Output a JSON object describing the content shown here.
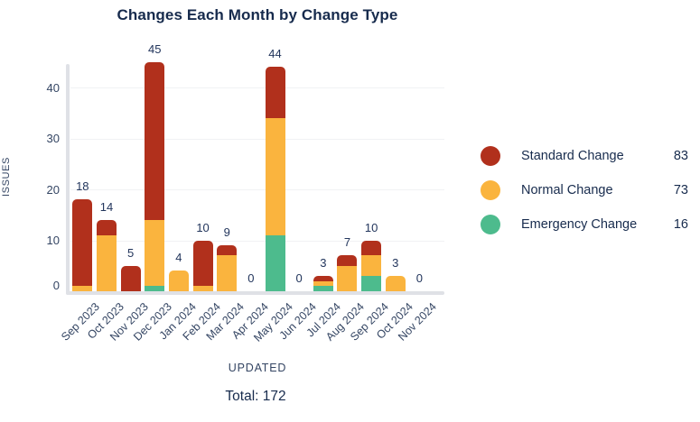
{
  "title": "Changes Each Month by Change Type",
  "y_axis": {
    "label": "ISSUES",
    "ticks": [
      0,
      10,
      20,
      30,
      40
    ]
  },
  "x_axis": {
    "label": "UPDATED"
  },
  "total_label": "Total: 172",
  "legend": {
    "items": [
      {
        "label": "Standard Change",
        "count": "83",
        "color": "#b1301c"
      },
      {
        "label": "Normal Change",
        "count": "73",
        "color": "#fab43e"
      },
      {
        "label": "Emergency Change",
        "count": "16",
        "color": "#4dbb8d"
      }
    ]
  },
  "chart_data": {
    "type": "bar",
    "stacked": true,
    "stack_order": "bottom-to-top",
    "title": "Changes Each Month by Change Type",
    "xlabel": "UPDATED",
    "ylabel": "ISSUES",
    "ylim": [
      0,
      45
    ],
    "grid": true,
    "legend_position": "right",
    "total": 172,
    "categories": [
      "Sep 2023",
      "Oct 2023",
      "Nov 2023",
      "Dec 2023",
      "Jan 2024",
      "Feb 2024",
      "Mar 2024",
      "Apr 2024",
      "May 2024",
      "Jun 2024",
      "Jul 2024",
      "Aug 2024",
      "Sep 2024",
      "Oct 2024",
      "Nov 2024"
    ],
    "totals": [
      18,
      14,
      5,
      45,
      4,
      10,
      9,
      0,
      44,
      0,
      3,
      7,
      10,
      3,
      0
    ],
    "series": [
      {
        "name": "Emergency Change",
        "total": 16,
        "color": "#4dbb8d",
        "values": [
          0,
          0,
          0,
          1,
          0,
          0,
          0,
          0,
          11,
          0,
          1,
          0,
          3,
          0,
          0
        ]
      },
      {
        "name": "Normal Change",
        "total": 73,
        "color": "#fab43e",
        "values": [
          1,
          11,
          0,
          13,
          4,
          1,
          7,
          0,
          23,
          0,
          1,
          5,
          4,
          3,
          0
        ]
      },
      {
        "name": "Standard Change",
        "total": 83,
        "color": "#b1301c",
        "values": [
          17,
          3,
          5,
          31,
          0,
          9,
          2,
          0,
          10,
          0,
          1,
          2,
          3,
          0,
          0
        ]
      }
    ]
  }
}
